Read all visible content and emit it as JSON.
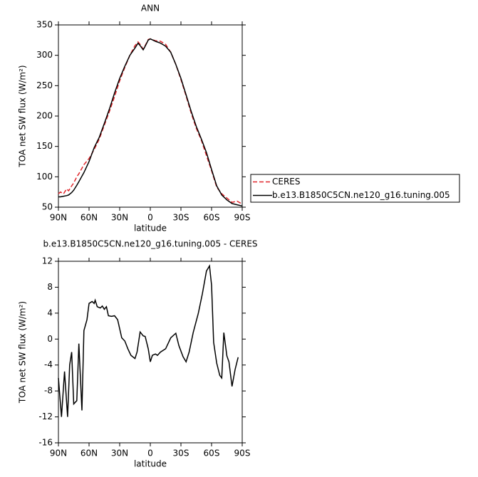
{
  "chart_data": [
    {
      "type": "line",
      "title": "ANN",
      "xlabel": "latitude",
      "ylabel": "TOA net SW flux (W/m²)",
      "x": [
        90,
        88,
        85,
        82,
        80,
        77,
        75,
        72,
        70,
        65,
        60,
        55,
        50,
        45,
        40,
        35,
        30,
        25,
        20,
        15,
        12,
        10,
        7,
        5,
        2,
        0,
        -5,
        -10,
        -15,
        -20,
        -25,
        -30,
        -35,
        -40,
        -45,
        -50,
        -55,
        -60,
        -65,
        -70,
        -75,
        -80,
        -85,
        -90
      ],
      "series": [
        {
          "name": "CERES",
          "color": "#e0262b",
          "dash": true,
          "values": [
            72,
            75,
            72,
            80,
            77,
            85,
            90,
            100,
            105,
            120,
            130,
            145,
            162,
            185,
            208,
            232,
            258,
            280,
            300,
            316,
            322,
            318,
            310,
            316,
            326,
            327,
            324,
            323,
            318,
            305,
            285,
            260,
            233,
            205,
            180,
            160,
            135,
            110,
            83,
            72,
            65,
            58,
            60,
            55
          ]
        },
        {
          "name": "b.e13.B1850C5CN.ne120_g16.tuning.005",
          "color": "#000000",
          "dash": false,
          "values": [
            67,
            67,
            68,
            69,
            70,
            74,
            78,
            86,
            92,
            107,
            125,
            148,
            165,
            188,
            212,
            238,
            262,
            282,
            300,
            312,
            320,
            316,
            309,
            315,
            325,
            327,
            323,
            320,
            315,
            305,
            285,
            262,
            235,
            208,
            183,
            162,
            140,
            112,
            85,
            70,
            62,
            56,
            54,
            52
          ]
        }
      ],
      "xlim": [
        90,
        -90
      ],
      "xticks": [
        {
          "value": 90,
          "label": "90N"
        },
        {
          "value": 60,
          "label": "60N"
        },
        {
          "value": 30,
          "label": "30N"
        },
        0,
        {
          "value": -30,
          "label": "30S"
        },
        {
          "value": -60,
          "label": "60S"
        },
        {
          "value": -90,
          "label": "90S"
        }
      ],
      "ylim": [
        50,
        350
      ],
      "yticks": [
        50,
        100,
        150,
        200,
        250,
        300,
        350
      ],
      "legend": "right"
    },
    {
      "type": "line",
      "title": "b.e13.B1850C5CN.ne120_g16.tuning.005 - CERES",
      "xlabel": "latitude",
      "ylabel": "TOA net SW flux (W/m²)",
      "x": [
        90,
        87,
        84,
        81,
        79,
        77,
        75,
        72,
        70,
        67,
        65,
        62,
        60,
        57,
        55,
        54,
        52,
        49,
        47,
        45,
        43,
        41,
        38,
        35,
        32,
        28,
        25,
        22,
        19,
        15,
        13,
        10,
        7,
        5,
        2,
        0,
        -2,
        -5,
        -7,
        -10,
        -15,
        -20,
        -25,
        -28,
        -32,
        -35,
        -38,
        -42,
        -47,
        -51,
        -55,
        -58,
        -60,
        -62,
        -65,
        -68,
        -70,
        -72,
        -75,
        -77,
        -80,
        -83,
        -86
      ],
      "color": "#000000",
      "values": [
        -6,
        -12,
        -5,
        -12,
        -4,
        -2,
        -10,
        -9.5,
        -0.7,
        -11,
        1.3,
        3,
        5.5,
        5.8,
        5.5,
        6,
        5,
        4.8,
        5.1,
        4.6,
        5,
        3.6,
        3.5,
        3.6,
        3,
        0.2,
        -0.3,
        -1.5,
        -2.5,
        -3,
        -2,
        1.1,
        0.5,
        0.4,
        -1.5,
        -3.5,
        -2.5,
        -2.3,
        -2.5,
        -2,
        -1.5,
        0.2,
        0.9,
        -1,
        -2.7,
        -3.5,
        -2,
        1,
        4,
        7,
        10.5,
        11.3,
        8.3,
        -0.5,
        -3.7,
        -5.6,
        -6,
        1,
        -2.6,
        -3.5,
        -7.3,
        -4.7,
        -2.8
      ],
      "xlim": [
        90,
        -90
      ],
      "xticks": [
        {
          "value": 90,
          "label": "90N"
        },
        {
          "value": 60,
          "label": "60N"
        },
        {
          "value": 30,
          "label": "30N"
        },
        0,
        {
          "value": -30,
          "label": "30S"
        },
        {
          "value": -60,
          "label": "60S"
        },
        {
          "value": -90,
          "label": "90S"
        }
      ],
      "ylim": [
        -16,
        12
      ],
      "yticks": [
        -16,
        -12,
        -8,
        -4,
        0,
        4,
        8,
        12
      ]
    }
  ]
}
